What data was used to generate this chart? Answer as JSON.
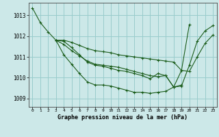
{
  "title": "Graphe pression niveau de la mer (hPa)",
  "bg_color": "#cce8e8",
  "grid_color": "#99cccc",
  "line_color": "#1a5c1a",
  "x_ticks": [
    0,
    1,
    2,
    3,
    4,
    5,
    6,
    7,
    8,
    9,
    10,
    11,
    12,
    13,
    14,
    15,
    16,
    17,
    18,
    19,
    20,
    21,
    22,
    23
  ],
  "ylim": [
    1008.6,
    1013.6
  ],
  "y_ticks": [
    1009,
    1010,
    1011,
    1012,
    1013
  ],
  "lines": [
    [
      1013.35,
      1012.65,
      1012.2,
      1011.8,
      1011.1,
      1010.65,
      1010.2,
      1009.8,
      1009.65,
      1009.65,
      1009.6,
      1009.5,
      1009.4,
      1009.3,
      1009.3,
      1009.25,
      1009.3,
      1009.35,
      1009.55,
      1009.65,
      null,
      null,
      null,
      null
    ],
    [
      null,
      null,
      null,
      1011.8,
      1011.75,
      1011.45,
      1011.1,
      1010.75,
      1010.6,
      1010.55,
      1010.45,
      1010.35,
      1010.3,
      1010.2,
      1010.1,
      1009.95,
      1010.2,
      1010.1,
      1009.55,
      1010.35,
      1012.55,
      null,
      null,
      null
    ],
    [
      null,
      null,
      null,
      1011.8,
      1011.6,
      1011.3,
      1011.05,
      1010.8,
      1010.65,
      1010.6,
      1010.55,
      1010.5,
      1010.4,
      1010.3,
      1010.2,
      1010.1,
      1010.05,
      1010.1,
      1009.55,
      1009.6,
      1010.6,
      1011.75,
      1012.25,
      1012.5
    ],
    [
      null,
      null,
      null,
      1011.8,
      1011.8,
      1011.7,
      1011.55,
      1011.4,
      1011.3,
      1011.25,
      1011.2,
      1011.1,
      1011.05,
      1011.0,
      1010.95,
      1010.9,
      1010.85,
      1010.8,
      1010.75,
      1010.35,
      1010.3,
      1011.0,
      1011.65,
      1012.05
    ]
  ]
}
